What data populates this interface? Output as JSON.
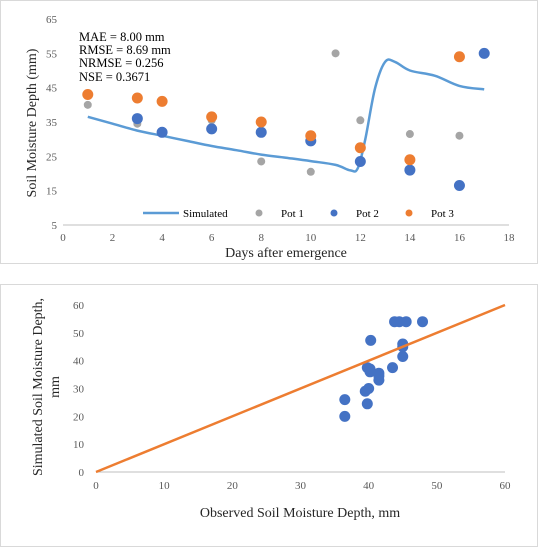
{
  "colors": {
    "simulated": "#5b9bd5",
    "pot1": "#a5a5a5",
    "pot2": "#4472c4",
    "pot3": "#ed7d31",
    "scatter": "#4472c4",
    "line_1to1": "#ed7d31",
    "grid": "#d9d9d9",
    "axis": "#bfbfbf"
  },
  "chart_data": [
    {
      "type": "line",
      "xlabel": "Days after emergence",
      "ylabel": "Soil Moisture Depth (mm)",
      "xlim": [
        0,
        18
      ],
      "ylim": [
        5,
        65
      ],
      "xticks": [
        0,
        2,
        4,
        6,
        8,
        10,
        12,
        14,
        16,
        18
      ],
      "yticks": [
        5,
        15,
        25,
        35,
        45,
        55,
        65
      ],
      "grid": false,
      "legend_position": "bottom",
      "stats": [
        "MAE   = 8.00 mm",
        "RMSE = 8.69 mm",
        "NRMSE = 0.256",
        "NSE    = 0.3671"
      ],
      "series": [
        {
          "name": "Simulated",
          "kind": "line",
          "x": [
            1,
            2,
            3,
            4,
            5,
            6,
            7,
            8,
            9,
            10,
            11,
            11.6,
            11.9,
            12.2,
            12.6,
            13,
            13.4,
            14,
            15,
            16,
            17
          ],
          "y": [
            36.5,
            34.5,
            32.5,
            31,
            29.5,
            28,
            26.8,
            25.5,
            24.6,
            23.6,
            22.5,
            20.9,
            21.6,
            30,
            45,
            52.5,
            52.5,
            50,
            48.5,
            45.5,
            44.5
          ]
        },
        {
          "name": "Pot 1",
          "kind": "scatter",
          "x": [
            1,
            3,
            6,
            8,
            10,
            11,
            12,
            14,
            16
          ],
          "y": [
            40,
            34.5,
            35.5,
            23.5,
            20.5,
            55,
            35.5,
            31.5,
            31
          ]
        },
        {
          "name": "Pot 2",
          "kind": "scatter",
          "x": [
            3,
            4,
            6,
            8,
            10,
            12,
            14,
            16,
            17
          ],
          "y": [
            36,
            32,
            33,
            32,
            29.5,
            23.5,
            21,
            16.5,
            55
          ]
        },
        {
          "name": "Pot 3",
          "kind": "scatter",
          "x": [
            1,
            3,
            4,
            6,
            8,
            10,
            12,
            14,
            16
          ],
          "y": [
            43,
            42,
            41,
            36.5,
            35,
            31,
            27.5,
            24,
            54
          ]
        }
      ]
    },
    {
      "type": "scatter",
      "xlabel": "Observed Soil Moisture Depth, mm",
      "ylabel": "Simulated Soil Moisture Depth,",
      "ylabel_line2": "mm",
      "xlim": [
        0,
        60
      ],
      "ylim": [
        0,
        60
      ],
      "xticks": [
        0,
        10,
        20,
        30,
        40,
        50,
        60
      ],
      "yticks": [
        0,
        10,
        20,
        30,
        40,
        50,
        60
      ],
      "grid": false,
      "series": [
        {
          "name": "",
          "kind": "scatter",
          "x": [
            36.5,
            36.5,
            39.5,
            39.8,
            40,
            40.2,
            40.2,
            40.3,
            41.5,
            41.5,
            41.5,
            43.5,
            43.8,
            44.5,
            45,
            45,
            45,
            45.5,
            47.9,
            39.8
          ],
          "y": [
            20,
            26,
            29,
            24.5,
            30,
            37,
            36,
            47.3,
            33,
            34.5,
            35.5,
            37.5,
            54,
            54,
            45,
            46,
            41.5,
            54,
            54,
            37.5
          ]
        },
        {
          "name": "",
          "kind": "line",
          "x": [
            0,
            60
          ],
          "y": [
            0,
            60
          ]
        }
      ]
    }
  ]
}
